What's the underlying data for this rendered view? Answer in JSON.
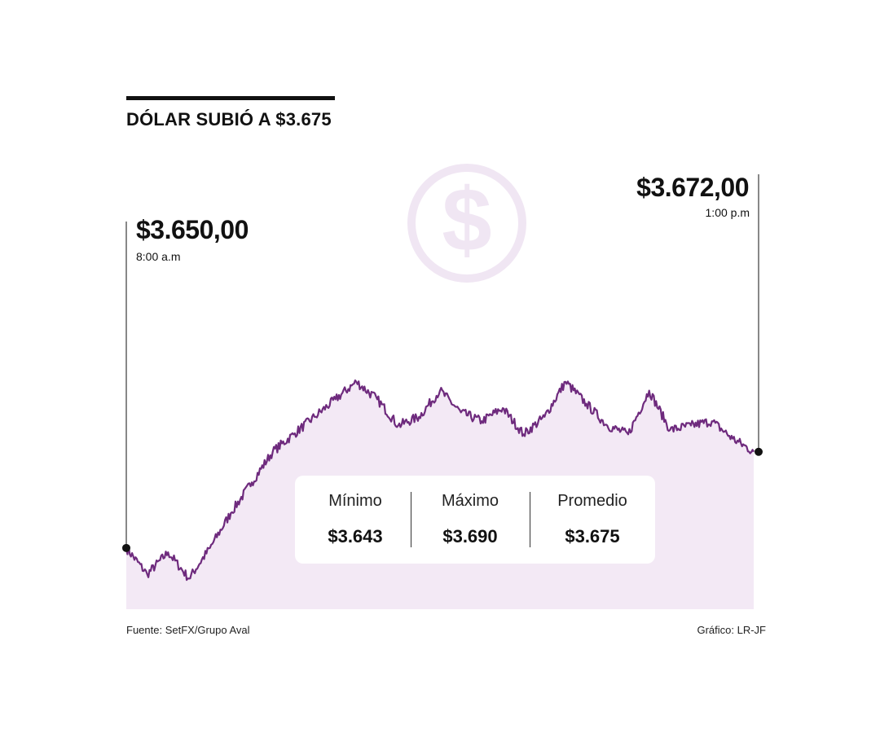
{
  "header": {
    "title": "DÓLAR SUBIÓ A $3.675"
  },
  "open": {
    "price": "$3.650,00",
    "time": "8:00 a.m"
  },
  "close": {
    "price": "$3.672,00",
    "time": "1:00 p.m"
  },
  "stats": [
    {
      "label": "Mínimo",
      "value": "$3.643"
    },
    {
      "label": "Máximo",
      "value": "$3.690"
    },
    {
      "label": "Promedio",
      "value": "$3.675"
    }
  ],
  "footer": {
    "source": "Fuente: SetFX/Grupo Aval",
    "credit": "Gráfico: LR-JF"
  },
  "colors": {
    "line": "#6e2a7d",
    "area": "#f3e9f5",
    "icon": "#f0e6f3"
  },
  "icon": "dollar-coin-icon",
  "chart_data": {
    "type": "area",
    "x_unit": "time",
    "x": [
      "8:00",
      "8:10",
      "8:20",
      "8:30",
      "8:40",
      "8:50",
      "9:00",
      "9:10",
      "9:20",
      "9:30",
      "9:40",
      "9:50",
      "10:00",
      "10:10",
      "10:20",
      "10:30",
      "10:40",
      "10:50",
      "11:00",
      "11:10",
      "11:20",
      "11:30",
      "11:40",
      "11:50",
      "12:00",
      "12:10",
      "12:20",
      "12:30",
      "12:40",
      "12:50",
      "1:00"
    ],
    "values": [
      3650,
      3644,
      3649,
      3643,
      3650,
      3658,
      3665,
      3672,
      3676,
      3680,
      3684,
      3688,
      3684,
      3678,
      3680,
      3686,
      3681,
      3679,
      3682,
      3676,
      3680,
      3688,
      3683,
      3678,
      3676,
      3686,
      3677,
      3678,
      3679,
      3675,
      3672
    ],
    "ylim": [
      3636,
      3712
    ],
    "grid": false
  }
}
